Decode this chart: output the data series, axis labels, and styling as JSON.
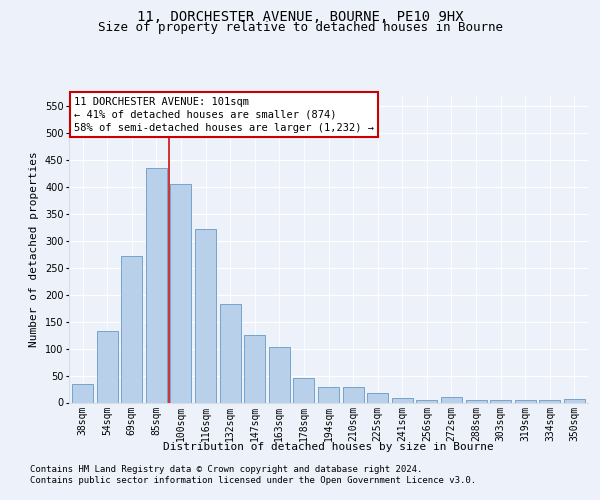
{
  "title1": "11, DORCHESTER AVENUE, BOURNE, PE10 9HX",
  "title2": "Size of property relative to detached houses in Bourne",
  "xlabel": "Distribution of detached houses by size in Bourne",
  "ylabel": "Number of detached properties",
  "categories": [
    "38sqm",
    "54sqm",
    "69sqm",
    "85sqm",
    "100sqm",
    "116sqm",
    "132sqm",
    "147sqm",
    "163sqm",
    "178sqm",
    "194sqm",
    "210sqm",
    "225sqm",
    "241sqm",
    "256sqm",
    "272sqm",
    "288sqm",
    "303sqm",
    "319sqm",
    "334sqm",
    "350sqm"
  ],
  "values": [
    35,
    132,
    272,
    435,
    405,
    322,
    183,
    125,
    103,
    46,
    29,
    29,
    17,
    8,
    5,
    10,
    4,
    5,
    4,
    4,
    6
  ],
  "bar_color": "#b8d0ea",
  "bar_edge_color": "#6899c4",
  "vline_x": 3.5,
  "vline_color": "#cc1111",
  "annotation_text": "11 DORCHESTER AVENUE: 101sqm\n← 41% of detached houses are smaller (874)\n58% of semi-detached houses are larger (1,232) →",
  "annotation_box_facecolor": "#ffffff",
  "annotation_box_edgecolor": "#cc0000",
  "ylim": [
    0,
    570
  ],
  "yticks": [
    0,
    50,
    100,
    150,
    200,
    250,
    300,
    350,
    400,
    450,
    500,
    550
  ],
  "bg_color": "#edf1f9",
  "plot_bg_color": "#edf1f9",
  "grid_color": "#d8dde8",
  "title1_fontsize": 10,
  "title2_fontsize": 9,
  "xlabel_fontsize": 8,
  "ylabel_fontsize": 8,
  "tick_fontsize": 7,
  "annot_fontsize": 7.5,
  "footnote_fontsize": 6.5,
  "footnote1": "Contains HM Land Registry data © Crown copyright and database right 2024.",
  "footnote2": "Contains public sector information licensed under the Open Government Licence v3.0."
}
